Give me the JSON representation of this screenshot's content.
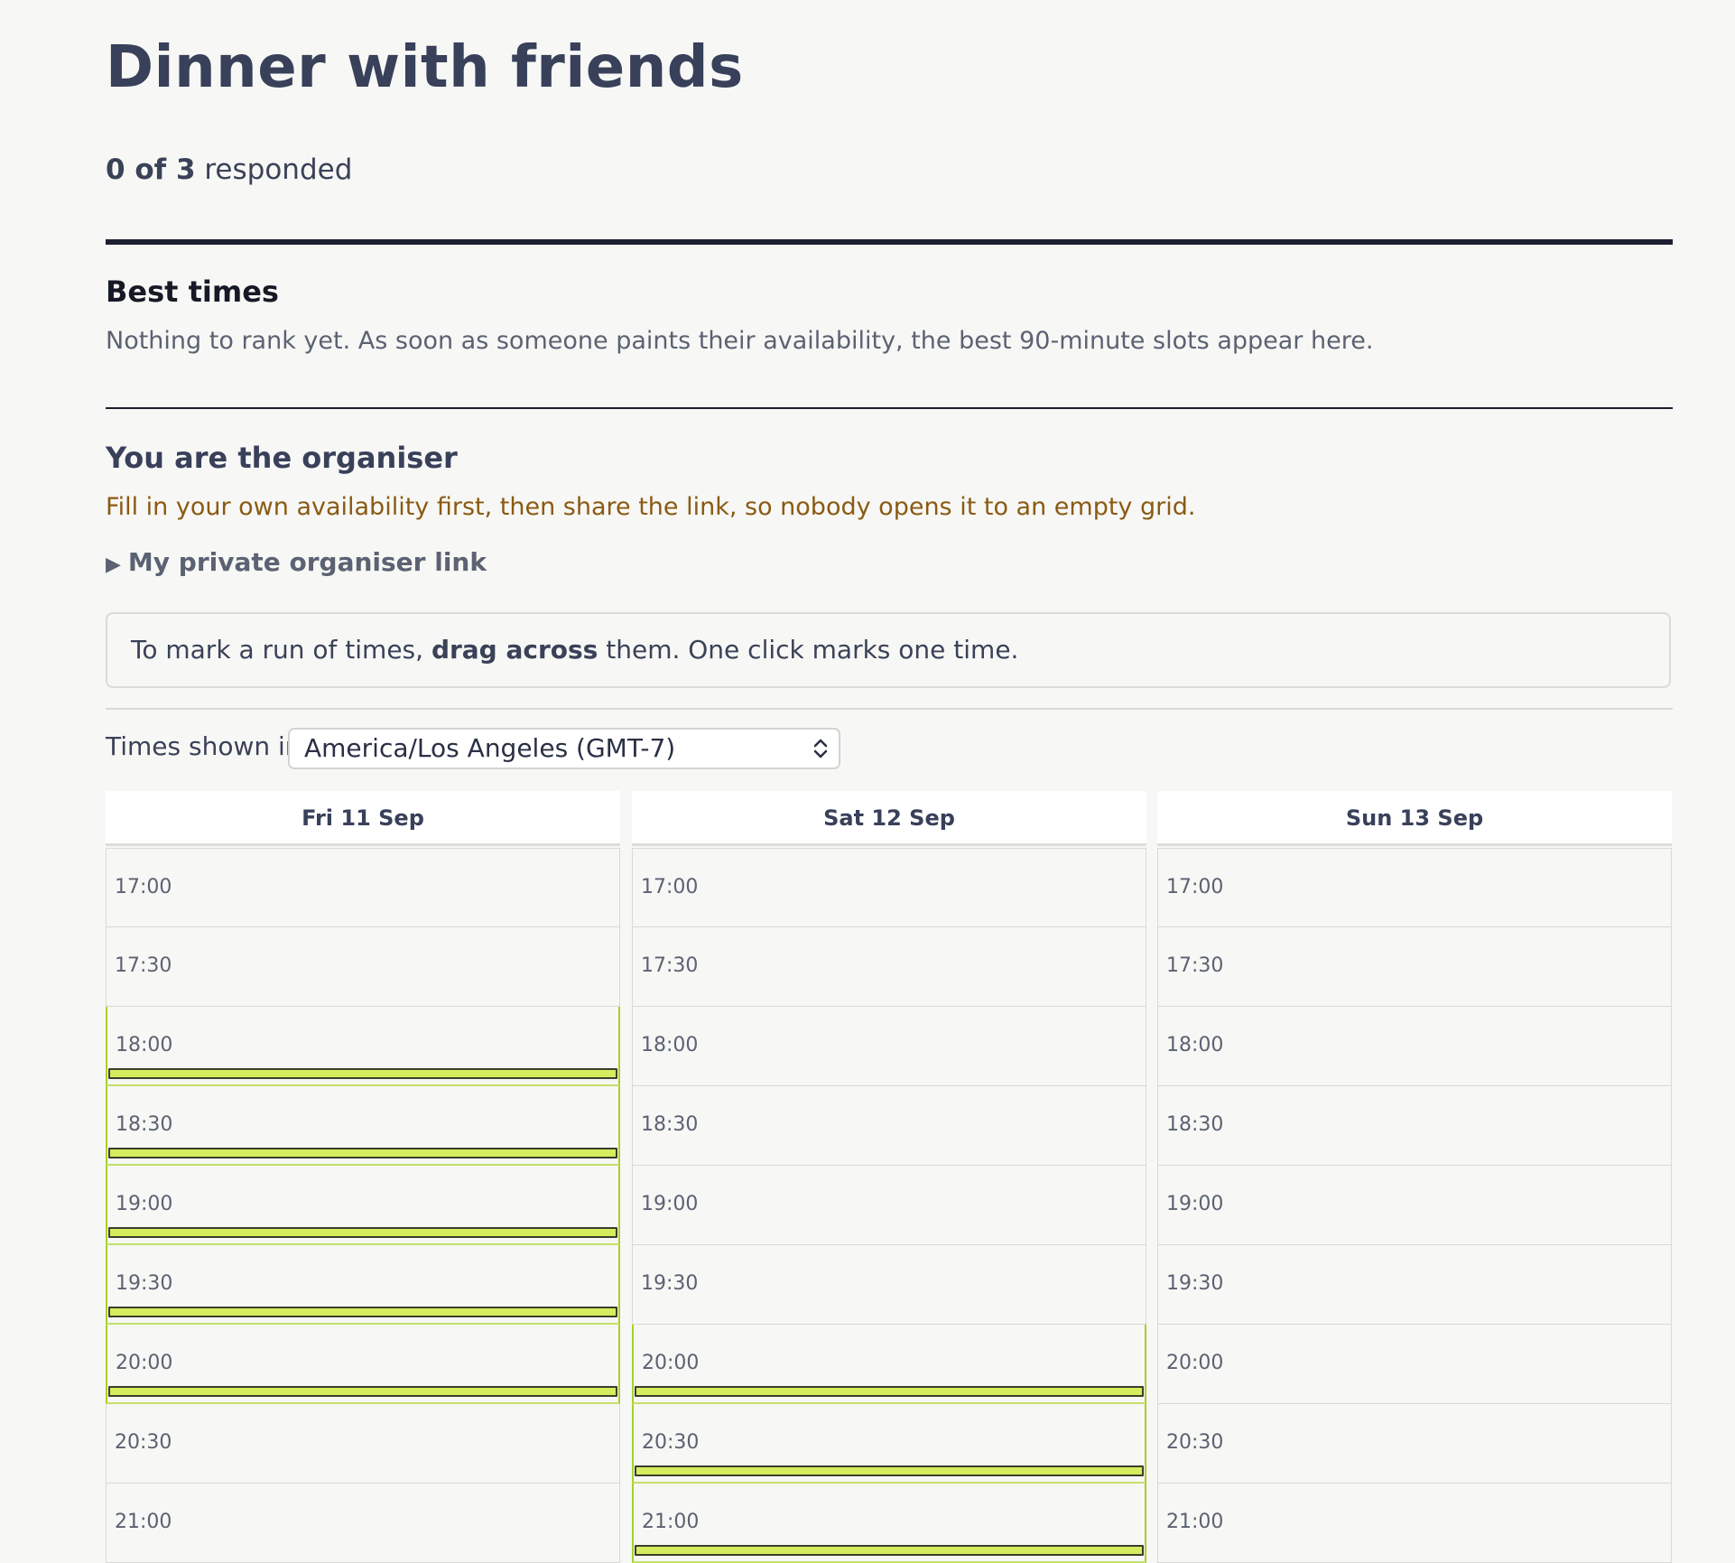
{
  "event": {
    "title": "Dinner with friends",
    "responded_count": "0 of 3",
    "responded_suffix": " responded"
  },
  "best_times": {
    "heading": "Best times",
    "description": "Nothing to rank yet. As soon as someone paints their availability, the best 90-minute slots appear here."
  },
  "organiser": {
    "heading": "You are the organiser",
    "warning": "Fill in your own availability first, then share the link, so nobody opens it to an empty grid.",
    "private_link_label": "My private organiser link"
  },
  "tip": {
    "prefix": "To mark a run of times, ",
    "emphasis": "drag across",
    "suffix": " them. One click marks one time."
  },
  "timezone": {
    "label": "Times shown in",
    "selected": "America/Los Angeles (GMT-7)"
  },
  "colors": {
    "available_fill": "#d6ec5e",
    "available_border": "#a9d02a",
    "warning_text": "#8a5a12"
  },
  "days": [
    {
      "label": "Fri 11 Sep",
      "slots": [
        {
          "time": "17:00",
          "available": false
        },
        {
          "time": "17:30",
          "available": false
        },
        {
          "time": "18:00",
          "available": true
        },
        {
          "time": "18:30",
          "available": true
        },
        {
          "time": "19:00",
          "available": true
        },
        {
          "time": "19:30",
          "available": true
        },
        {
          "time": "20:00",
          "available": true
        },
        {
          "time": "20:30",
          "available": false
        },
        {
          "time": "21:00",
          "available": false
        }
      ]
    },
    {
      "label": "Sat 12 Sep",
      "slots": [
        {
          "time": "17:00",
          "available": false
        },
        {
          "time": "17:30",
          "available": false
        },
        {
          "time": "18:00",
          "available": false
        },
        {
          "time": "18:30",
          "available": false
        },
        {
          "time": "19:00",
          "available": false
        },
        {
          "time": "19:30",
          "available": false
        },
        {
          "time": "20:00",
          "available": true
        },
        {
          "time": "20:30",
          "available": true
        },
        {
          "time": "21:00",
          "available": true
        }
      ]
    },
    {
      "label": "Sun 13 Sep",
      "slots": [
        {
          "time": "17:00",
          "available": false
        },
        {
          "time": "17:30",
          "available": false
        },
        {
          "time": "18:00",
          "available": false
        },
        {
          "time": "18:30",
          "available": false
        },
        {
          "time": "19:00",
          "available": false
        },
        {
          "time": "19:30",
          "available": false
        },
        {
          "time": "20:00",
          "available": false
        },
        {
          "time": "20:30",
          "available": false
        },
        {
          "time": "21:00",
          "available": false
        }
      ]
    }
  ]
}
